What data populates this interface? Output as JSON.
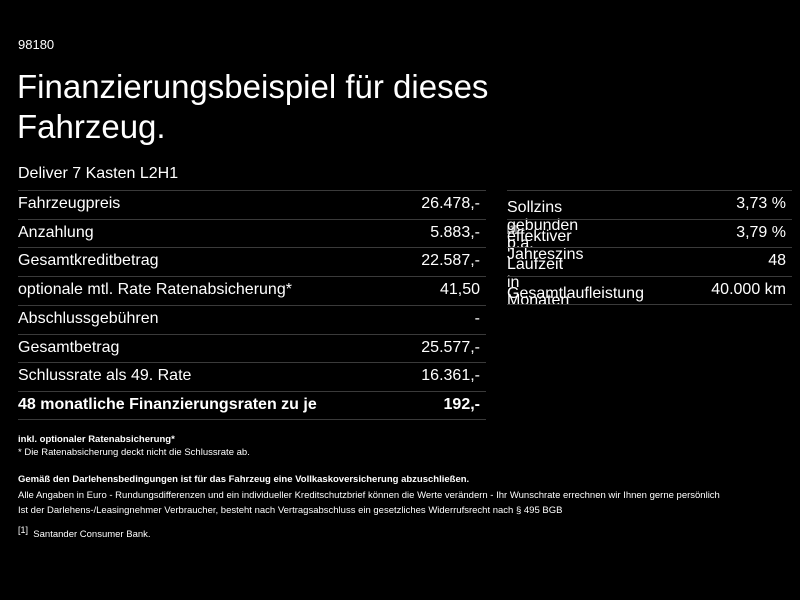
{
  "header": {
    "code": "98180",
    "title_lines": [
      "Finanzierungsbeispiel für dieses",
      "Fahrzeug."
    ],
    "subtitle": "Deliver 7 Kasten L2H1"
  },
  "left_table": {
    "rows": [
      [
        "Fahrzeugpreis",
        "26.478,-"
      ],
      [
        "Anzahlung",
        "5.883,-"
      ],
      [
        "Gesamtkreditbetrag",
        "22.587,-"
      ],
      [
        "optionale mtl. Rate Ratenabsicherung*",
        "41,50"
      ],
      [
        "Abschlussgebühren",
        "-"
      ],
      [
        "Gesamtbetrag",
        "25.577,-"
      ],
      [
        "Schlussrate als 49. Rate",
        "16.361,-"
      ],
      [
        "48 monatliche Finanzierungsraten zu je",
        "192,-"
      ]
    ]
  },
  "right_table": {
    "rows": [
      {
        "label": "Sollzins gebunden p.a.",
        "value": "3,73 %"
      },
      {
        "label": "effektiver Jahreszins",
        "note": "[1]",
        "value": "3,79 %"
      },
      {
        "label": "Laufzeit in Monaten",
        "value": "48"
      },
      {
        "label": "Gesamtlaufleistung",
        "value": "40.000 km"
      }
    ]
  },
  "footnotes": {
    "insurance": "inkl. optionaler Ratenabsicherung*",
    "insurance_note": "* Die Ratenabsicherung deckt nicht die Schlussrate ab.",
    "requirement": "Gemäß den Darlehensbedingungen ist für das Fahrzeug eine Vollkaskoversicherung abzuschließen.",
    "disclaimer_1": "Alle Angaben in Euro - Rundungsdifferenzen und ein individueller Kreditschutzbrief können die Werte verändern - Ihr Wunschrate errechnen wir Ihnen gerne persönlich",
    "disclaimer_2": "Ist der Darlehens-/Leasingnehmer Verbraucher, besteht nach Vertragsabschluss ein gesetzliches Widerrufsrecht nach § 495 BGB",
    "bank_mark": "[1]",
    "bank": "Santander Consumer Bank."
  }
}
